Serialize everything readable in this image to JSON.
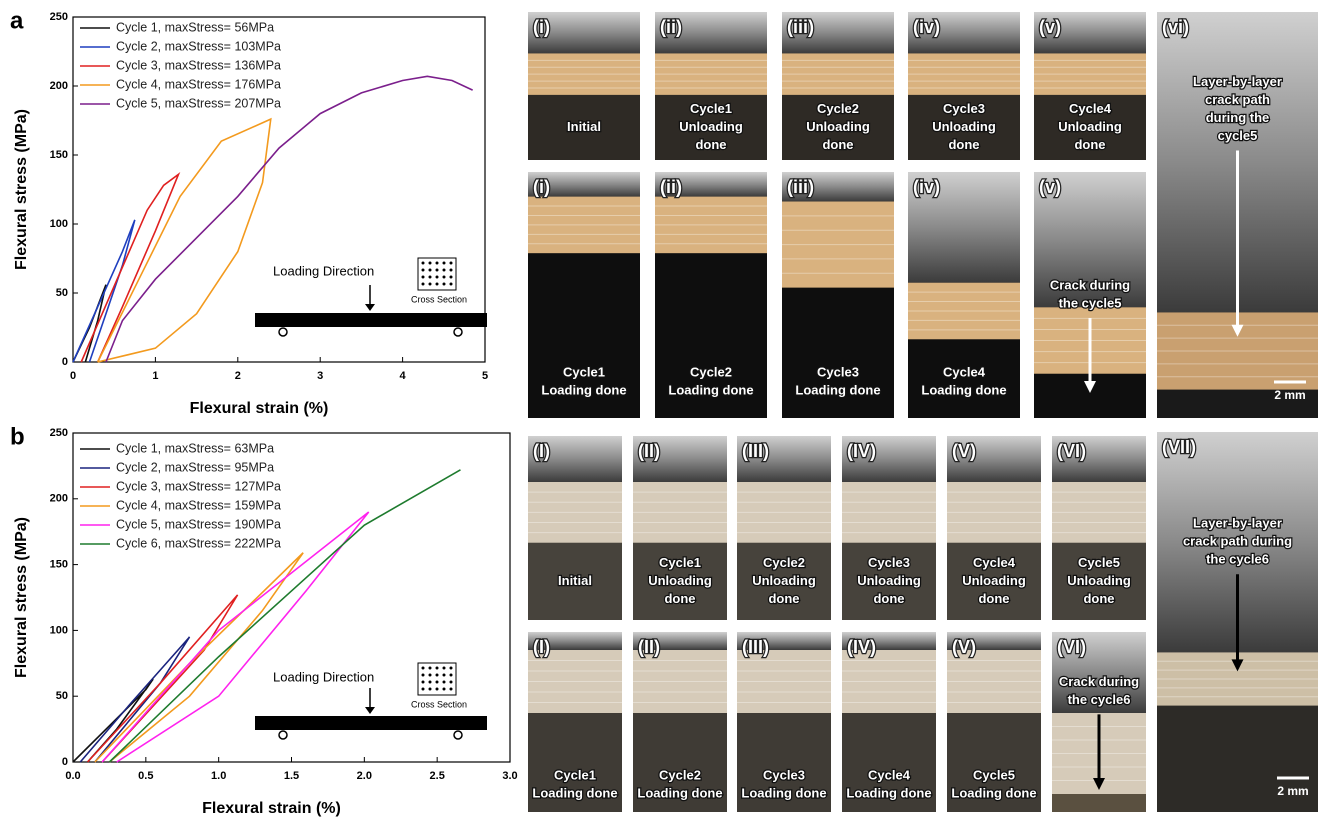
{
  "chart_data": [
    {
      "type": "line",
      "panel_label": "a",
      "x_label": "Flexural strain (%)",
      "y_label": "Flexural stress (MPa)",
      "xlim": [
        0,
        5
      ],
      "ylim": [
        0,
        250
      ],
      "xticks": [
        0,
        1,
        2,
        3,
        4,
        5
      ],
      "yticks": [
        0,
        50,
        100,
        150,
        200,
        250
      ],
      "annotations": [
        "Loading Direction",
        "Cross Section"
      ],
      "series": [
        {
          "name": "Cycle 1, maxStress=  56MPa",
          "color": "#111111",
          "x": [
            0,
            0.2,
            0.4,
            0.3,
            0.15
          ],
          "values": [
            0,
            25,
            56,
            30,
            0
          ]
        },
        {
          "name": "Cycle 2, maxStress= 103MPa",
          "color": "#1f3fbf",
          "x": [
            0,
            0.3,
            0.6,
            0.75,
            0.6,
            0.4,
            0.2
          ],
          "values": [
            0,
            40,
            80,
            103,
            70,
            35,
            0
          ]
        },
        {
          "name": "Cycle 3, maxStress= 136MPa",
          "color": "#e02020",
          "x": [
            0.1,
            0.5,
            0.9,
            1.1,
            1.28,
            1.0,
            0.6,
            0.3
          ],
          "values": [
            0,
            55,
            110,
            128,
            136,
            95,
            40,
            0
          ]
        },
        {
          "name": "Cycle 4, maxStress= 176MPa",
          "color": "#f39a1e",
          "x": [
            0.3,
            0.8,
            1.3,
            1.8,
            2.4,
            2.3,
            2.0,
            1.5,
            1.0,
            0.3
          ],
          "values": [
            0,
            60,
            120,
            160,
            176,
            130,
            80,
            35,
            10,
            0
          ]
        },
        {
          "name": "Cycle 5, maxStress= 207MPa",
          "color": "#7b1f8c",
          "x": [
            0.4,
            0.6,
            1.0,
            1.5,
            2.0,
            2.5,
            3.0,
            3.5,
            4.0,
            4.3,
            4.6,
            4.85
          ],
          "values": [
            0,
            30,
            60,
            90,
            120,
            155,
            180,
            195,
            204,
            207,
            204,
            197
          ]
        }
      ]
    },
    {
      "type": "line",
      "panel_label": "b",
      "x_label": "Flexural strain (%)",
      "y_label": "Flexural stress (MPa)",
      "xlim": [
        0,
        3
      ],
      "ylim": [
        0,
        250
      ],
      "xticks": [
        {
          "value": 0,
          "label": "0.0"
        },
        0.5,
        {
          "value": 1,
          "label": "1.0"
        },
        1.5,
        {
          "value": 2,
          "label": "2.0"
        },
        2.5,
        {
          "value": 3,
          "label": "3.0"
        }
      ],
      "yticks": [
        0,
        50,
        100,
        150,
        200,
        250
      ],
      "annotations": [
        "Loading Direction",
        "Cross Section"
      ],
      "series": [
        {
          "name": "Cycle 1, maxStress=  63MPa",
          "color": "#111111",
          "x": [
            0,
            0.5,
            0.55,
            0.3,
            0.1
          ],
          "values": [
            0,
            55,
            63,
            25,
            0
          ]
        },
        {
          "name": "Cycle 2, maxStress=  95MPa",
          "color": "#1a237e",
          "x": [
            0.05,
            0.4,
            0.8,
            0.6,
            0.15
          ],
          "values": [
            0,
            45,
            95,
            60,
            0
          ]
        },
        {
          "name": "Cycle 3, maxStress= 127MPa",
          "color": "#e02020",
          "x": [
            0.1,
            0.6,
            1.13,
            0.9,
            0.2
          ],
          "values": [
            0,
            60,
            127,
            85,
            0
          ]
        },
        {
          "name": "Cycle 4, maxStress= 159MPa",
          "color": "#f39a1e",
          "x": [
            0.15,
            0.8,
            1.58,
            1.3,
            0.8,
            0.25
          ],
          "values": [
            0,
            75,
            159,
            115,
            50,
            0
          ]
        },
        {
          "name": "Cycle 5, maxStress= 190MPa",
          "color": "#ff22ee",
          "x": [
            0.2,
            1.0,
            2.03,
            1.6,
            1.0,
            0.3
          ],
          "values": [
            0,
            100,
            190,
            130,
            50,
            0
          ]
        },
        {
          "name": "Cycle 6, maxStress= 222MPa",
          "color": "#1e7b2e",
          "x": [
            0.25,
            1.0,
            1.5,
            2.0,
            2.66
          ],
          "values": [
            0,
            80,
            130,
            180,
            222
          ]
        }
      ]
    }
  ],
  "photos": {
    "a": {
      "top": [
        {
          "label": "(i)",
          "caption": [
            "Initial"
          ]
        },
        {
          "label": "(ii)",
          "caption": [
            "Cycle1",
            "Unloading",
            "done"
          ]
        },
        {
          "label": "(iii)",
          "caption": [
            "Cycle2",
            "Unloading",
            "done"
          ]
        },
        {
          "label": "(iv)",
          "caption": [
            "Cycle3",
            "Unloading",
            "done"
          ]
        },
        {
          "label": "(v)",
          "caption": [
            "Cycle4",
            "Unloading",
            "done"
          ]
        }
      ],
      "bottom": [
        {
          "label": "(i)",
          "caption": [
            "Cycle1",
            "Loading done"
          ]
        },
        {
          "label": "(ii)",
          "caption": [
            "Cycle2",
            "Loading done"
          ]
        },
        {
          "label": "(iii)",
          "caption": [
            "Cycle3",
            "Loading done"
          ]
        },
        {
          "label": "(iv)",
          "caption": [
            "Cycle4",
            "Loading done"
          ]
        },
        {
          "label": "(v)",
          "caption": [
            "Crack during",
            "the cycle5"
          ]
        }
      ],
      "side": {
        "label": "(vi)",
        "caption": [
          "Layer-by-layer",
          "crack path",
          "during the",
          "cycle5"
        ]
      },
      "scale_bar": "2 mm"
    },
    "b": {
      "top": [
        {
          "label": "(I)",
          "caption": [
            "Initial"
          ]
        },
        {
          "label": "(II)",
          "caption": [
            "Cycle1",
            "Unloading",
            "done"
          ]
        },
        {
          "label": "(III)",
          "caption": [
            "Cycle2",
            "Unloading",
            "done"
          ]
        },
        {
          "label": "(IV)",
          "caption": [
            "Cycle3",
            "Unloading",
            "done"
          ]
        },
        {
          "label": "(V)",
          "caption": [
            "Cycle4",
            "Unloading",
            "done"
          ]
        },
        {
          "label": "(VI)",
          "caption": [
            "Cycle5",
            "Unloading",
            "done"
          ]
        }
      ],
      "bottom": [
        {
          "label": "(I)",
          "caption": [
            "Cycle1",
            "Loading done"
          ]
        },
        {
          "label": "(II)",
          "caption": [
            "Cycle2",
            "Loading done"
          ]
        },
        {
          "label": "(III)",
          "caption": [
            "Cycle3",
            "Loading done"
          ]
        },
        {
          "label": "(IV)",
          "caption": [
            "Cycle4",
            "Loading done"
          ]
        },
        {
          "label": "(V)",
          "caption": [
            "Cycle5",
            "Loading done"
          ]
        },
        {
          "label": "(VI)",
          "caption": [
            "Crack during",
            "the cycle6"
          ]
        }
      ],
      "side": {
        "label": "(VII)",
        "caption": [
          "Layer-by-layer",
          "crack path during",
          "the cycle6"
        ]
      },
      "scale_bar": "2 mm"
    }
  }
}
